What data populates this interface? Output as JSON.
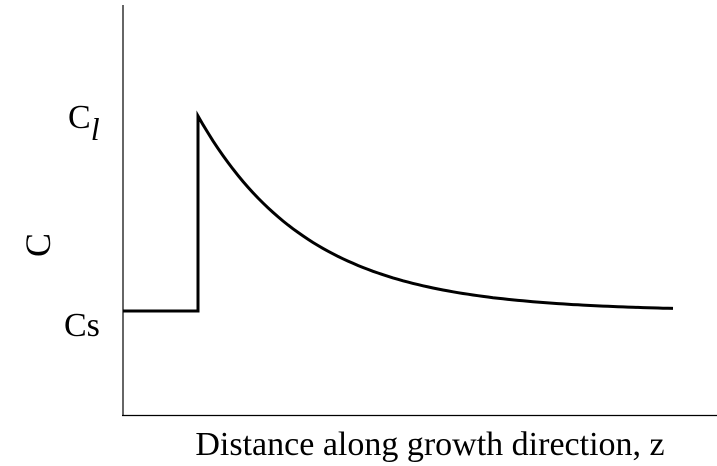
{
  "y_axis": {
    "label": "C",
    "top_level": {
      "symbol": "C",
      "subscript": "l"
    },
    "bottom_level": "Cs"
  },
  "x_axis": {
    "label": "Distance along growth direction, z"
  }
}
